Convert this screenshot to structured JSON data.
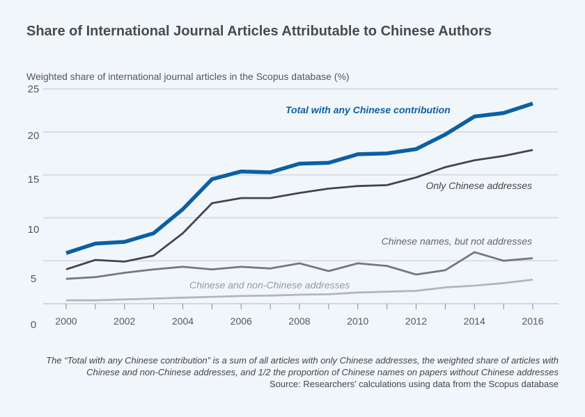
{
  "chart_data": {
    "type": "line",
    "title": "Share of International Journal Articles Attributable to Chinese Authors",
    "ylabel": "Weighted share of international journal articles in the Scopus database (%)",
    "xlabel": "",
    "x": [
      2000,
      2001,
      2002,
      2003,
      2004,
      2005,
      2006,
      2007,
      2008,
      2009,
      2010,
      2011,
      2012,
      2013,
      2014,
      2015,
      2016
    ],
    "xticklabels": [
      "2000",
      "2002",
      "2004",
      "2006",
      "2008",
      "2010",
      "2012",
      "2014",
      "2016"
    ],
    "yticklabels": [
      "25",
      "20",
      "15",
      "10",
      "5",
      "0"
    ],
    "ylim": [
      0,
      25
    ],
    "xlim": [
      1999.5,
      2016.5
    ],
    "grid": true,
    "series": [
      {
        "name": "Total with any Chinese contribution",
        "color": "#0b5fa5",
        "values": [
          5.9,
          7.0,
          7.2,
          8.2,
          11.0,
          14.5,
          15.4,
          15.3,
          16.3,
          16.4,
          17.4,
          17.5,
          18.0,
          19.7,
          21.8,
          22.2,
          23.3
        ]
      },
      {
        "name": "Only Chinese addresses",
        "color": "#444448",
        "values": [
          4.0,
          5.1,
          4.9,
          5.6,
          8.2,
          11.7,
          12.3,
          12.3,
          12.9,
          13.4,
          13.7,
          13.8,
          14.7,
          15.9,
          16.7,
          17.2,
          17.9
        ]
      },
      {
        "name": "Chinese names, but not addresses",
        "color": "#77777b",
        "values": [
          2.9,
          3.1,
          3.6,
          4.0,
          4.3,
          4.0,
          4.3,
          4.1,
          4.7,
          3.8,
          4.7,
          4.4,
          3.4,
          3.9,
          6.0,
          5.0,
          5.3
        ]
      },
      {
        "name": "Chinese and non-Chinese addresses",
        "color": "#b4b5b8",
        "values": [
          0.4,
          0.4,
          0.5,
          0.6,
          0.7,
          0.8,
          0.9,
          0.95,
          1.05,
          1.1,
          1.3,
          1.4,
          1.5,
          1.9,
          2.1,
          2.4,
          2.8
        ]
      }
    ]
  },
  "note": "The “Total with any Chinese contribution” is a sum of all articles with only Chinese addresses, the weighted share of articles with Chinese and non-Chinese addresses, and 1/2 the proportion of Chinese names on papers without Chinese addresses",
  "source": "Source: Researchers’ calculations using data from the Scopus database"
}
